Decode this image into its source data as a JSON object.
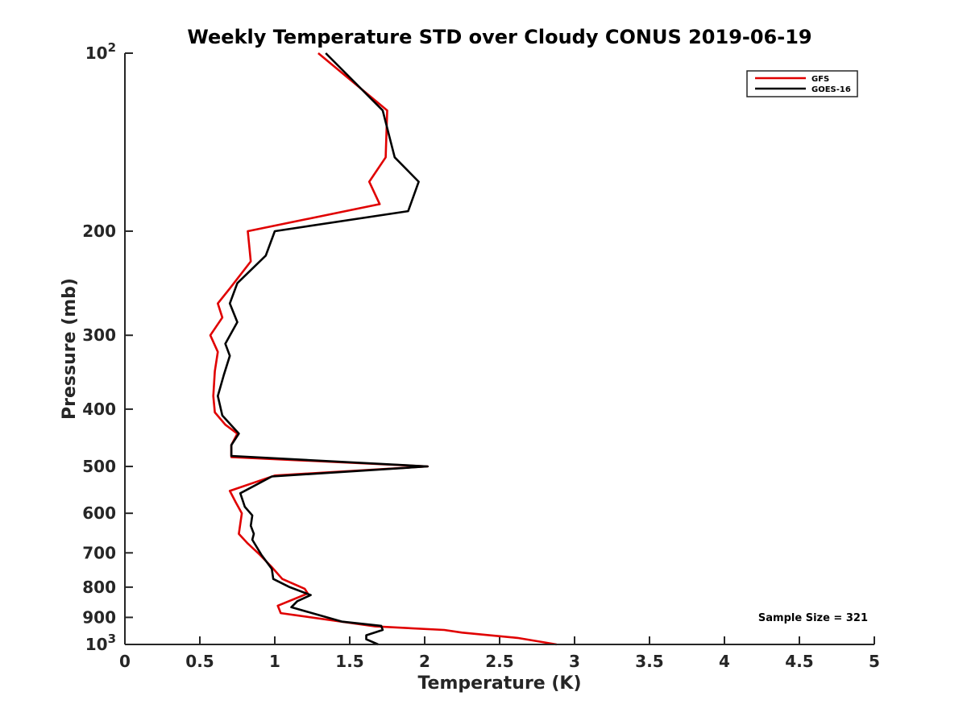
{
  "chart_data": {
    "type": "line",
    "title": "Weekly Temperature STD over Cloudy CONUS 2019-06-19",
    "xlabel": "Temperature (K)",
    "ylabel": "Pressure (mb)",
    "xlim": [
      0,
      5
    ],
    "ylim": [
      100,
      1000
    ],
    "y_scale": "log",
    "y_reversed": true,
    "grid": false,
    "legend_position": "top-right",
    "x_ticks": [
      {
        "value": 0,
        "label": "0"
      },
      {
        "value": 0.5,
        "label": "0.5"
      },
      {
        "value": 1,
        "label": "1"
      },
      {
        "value": 1.5,
        "label": "1.5"
      },
      {
        "value": 2,
        "label": "2"
      },
      {
        "value": 2.5,
        "label": "2.5"
      },
      {
        "value": 3,
        "label": "3"
      },
      {
        "value": 3.5,
        "label": "3.5"
      },
      {
        "value": 4,
        "label": "4"
      },
      {
        "value": 4.5,
        "label": "4.5"
      },
      {
        "value": 5,
        "label": "5"
      }
    ],
    "y_ticks": [
      {
        "value": 100,
        "label": "10",
        "sup": "2"
      },
      {
        "value": 200,
        "label": "200"
      },
      {
        "value": 300,
        "label": "300"
      },
      {
        "value": 400,
        "label": "400"
      },
      {
        "value": 500,
        "label": "500"
      },
      {
        "value": 600,
        "label": "600"
      },
      {
        "value": 700,
        "label": "700"
      },
      {
        "value": 800,
        "label": "800"
      },
      {
        "value": 900,
        "label": "900"
      },
      {
        "value": 1000,
        "label": "10",
        "sup": "3"
      }
    ],
    "series": [
      {
        "name": "GFS",
        "color": "#e00000",
        "points": [
          [
            1.29,
            100
          ],
          [
            1.75,
            125
          ],
          [
            1.74,
            150
          ],
          [
            1.63,
            165
          ],
          [
            1.7,
            180
          ],
          [
            0.82,
            200
          ],
          [
            0.84,
            225
          ],
          [
            0.7,
            250
          ],
          [
            0.62,
            265
          ],
          [
            0.65,
            280
          ],
          [
            0.57,
            300
          ],
          [
            0.62,
            320
          ],
          [
            0.6,
            345
          ],
          [
            0.59,
            380
          ],
          [
            0.6,
            405
          ],
          [
            0.67,
            425
          ],
          [
            0.75,
            440
          ],
          [
            0.71,
            460
          ],
          [
            0.71,
            482
          ],
          [
            2.02,
            500
          ],
          [
            1.0,
            518
          ],
          [
            0.7,
            550
          ],
          [
            0.74,
            575
          ],
          [
            0.78,
            600
          ],
          [
            0.77,
            625
          ],
          [
            0.76,
            650
          ],
          [
            0.82,
            675
          ],
          [
            0.9,
            705
          ],
          [
            0.98,
            740
          ],
          [
            1.05,
            775
          ],
          [
            1.2,
            805
          ],
          [
            1.22,
            820
          ],
          [
            1.02,
            860
          ],
          [
            1.04,
            885
          ],
          [
            1.67,
            932
          ],
          [
            2.13,
            945
          ],
          [
            2.25,
            955
          ],
          [
            2.62,
            975
          ],
          [
            2.88,
            1000
          ]
        ]
      },
      {
        "name": "GOES-16",
        "color": "#000000",
        "points": [
          [
            1.34,
            100
          ],
          [
            1.72,
            125
          ],
          [
            1.8,
            150
          ],
          [
            1.96,
            165
          ],
          [
            1.89,
            185
          ],
          [
            1.0,
            200
          ],
          [
            0.94,
            220
          ],
          [
            0.75,
            245
          ],
          [
            0.7,
            265
          ],
          [
            0.75,
            285
          ],
          [
            0.67,
            310
          ],
          [
            0.7,
            325
          ],
          [
            0.66,
            350
          ],
          [
            0.62,
            380
          ],
          [
            0.65,
            410
          ],
          [
            0.76,
            440
          ],
          [
            0.71,
            460
          ],
          [
            0.71,
            480
          ],
          [
            2.02,
            500
          ],
          [
            0.98,
            520
          ],
          [
            0.77,
            555
          ],
          [
            0.8,
            585
          ],
          [
            0.85,
            605
          ],
          [
            0.84,
            630
          ],
          [
            0.86,
            650
          ],
          [
            0.85,
            665
          ],
          [
            0.91,
            705
          ],
          [
            0.98,
            745
          ],
          [
            0.99,
            775
          ],
          [
            1.1,
            800
          ],
          [
            1.24,
            825
          ],
          [
            1.15,
            845
          ],
          [
            1.11,
            865
          ],
          [
            1.45,
            915
          ],
          [
            1.71,
            930
          ],
          [
            1.72,
            945
          ],
          [
            1.61,
            965
          ],
          [
            1.61,
            980
          ],
          [
            1.69,
            1000
          ]
        ]
      }
    ],
    "annotations": [
      {
        "text": "Sample Size = 321",
        "position": "bottom-right"
      }
    ]
  }
}
